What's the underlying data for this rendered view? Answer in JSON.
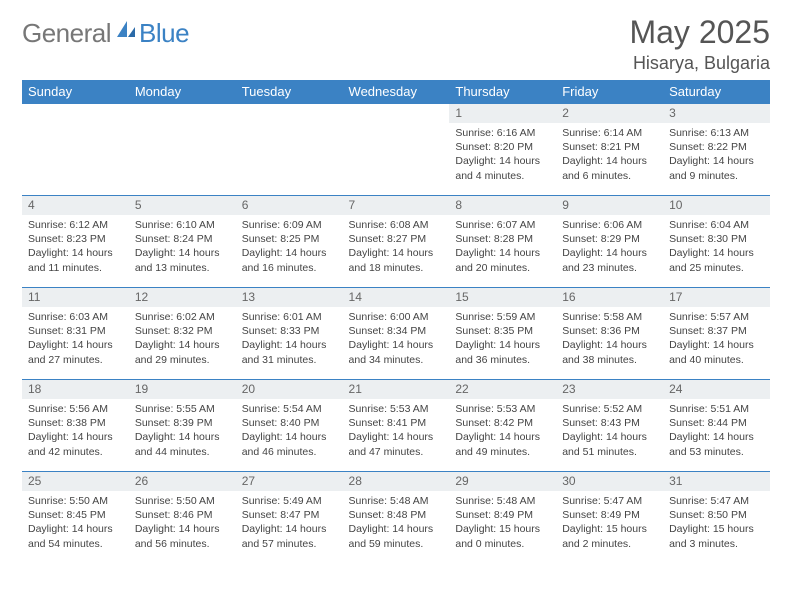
{
  "logo": {
    "general": "General",
    "blue": "Blue"
  },
  "title": "May 2025",
  "location": "Hisarya, Bulgaria",
  "colors": {
    "header_bg": "#3b82c4",
    "daynum_bg": "#eceff1",
    "border": "#3b82c4"
  },
  "weekdays": [
    "Sunday",
    "Monday",
    "Tuesday",
    "Wednesday",
    "Thursday",
    "Friday",
    "Saturday"
  ],
  "rows": [
    [
      {
        "n": "",
        "sr": "",
        "ss": "",
        "dl": ""
      },
      {
        "n": "",
        "sr": "",
        "ss": "",
        "dl": ""
      },
      {
        "n": "",
        "sr": "",
        "ss": "",
        "dl": ""
      },
      {
        "n": "",
        "sr": "",
        "ss": "",
        "dl": ""
      },
      {
        "n": "1",
        "sr": "Sunrise: 6:16 AM",
        "ss": "Sunset: 8:20 PM",
        "dl": "Daylight: 14 hours and 4 minutes."
      },
      {
        "n": "2",
        "sr": "Sunrise: 6:14 AM",
        "ss": "Sunset: 8:21 PM",
        "dl": "Daylight: 14 hours and 6 minutes."
      },
      {
        "n": "3",
        "sr": "Sunrise: 6:13 AM",
        "ss": "Sunset: 8:22 PM",
        "dl": "Daylight: 14 hours and 9 minutes."
      }
    ],
    [
      {
        "n": "4",
        "sr": "Sunrise: 6:12 AM",
        "ss": "Sunset: 8:23 PM",
        "dl": "Daylight: 14 hours and 11 minutes."
      },
      {
        "n": "5",
        "sr": "Sunrise: 6:10 AM",
        "ss": "Sunset: 8:24 PM",
        "dl": "Daylight: 14 hours and 13 minutes."
      },
      {
        "n": "6",
        "sr": "Sunrise: 6:09 AM",
        "ss": "Sunset: 8:25 PM",
        "dl": "Daylight: 14 hours and 16 minutes."
      },
      {
        "n": "7",
        "sr": "Sunrise: 6:08 AM",
        "ss": "Sunset: 8:27 PM",
        "dl": "Daylight: 14 hours and 18 minutes."
      },
      {
        "n": "8",
        "sr": "Sunrise: 6:07 AM",
        "ss": "Sunset: 8:28 PM",
        "dl": "Daylight: 14 hours and 20 minutes."
      },
      {
        "n": "9",
        "sr": "Sunrise: 6:06 AM",
        "ss": "Sunset: 8:29 PM",
        "dl": "Daylight: 14 hours and 23 minutes."
      },
      {
        "n": "10",
        "sr": "Sunrise: 6:04 AM",
        "ss": "Sunset: 8:30 PM",
        "dl": "Daylight: 14 hours and 25 minutes."
      }
    ],
    [
      {
        "n": "11",
        "sr": "Sunrise: 6:03 AM",
        "ss": "Sunset: 8:31 PM",
        "dl": "Daylight: 14 hours and 27 minutes."
      },
      {
        "n": "12",
        "sr": "Sunrise: 6:02 AM",
        "ss": "Sunset: 8:32 PM",
        "dl": "Daylight: 14 hours and 29 minutes."
      },
      {
        "n": "13",
        "sr": "Sunrise: 6:01 AM",
        "ss": "Sunset: 8:33 PM",
        "dl": "Daylight: 14 hours and 31 minutes."
      },
      {
        "n": "14",
        "sr": "Sunrise: 6:00 AM",
        "ss": "Sunset: 8:34 PM",
        "dl": "Daylight: 14 hours and 34 minutes."
      },
      {
        "n": "15",
        "sr": "Sunrise: 5:59 AM",
        "ss": "Sunset: 8:35 PM",
        "dl": "Daylight: 14 hours and 36 minutes."
      },
      {
        "n": "16",
        "sr": "Sunrise: 5:58 AM",
        "ss": "Sunset: 8:36 PM",
        "dl": "Daylight: 14 hours and 38 minutes."
      },
      {
        "n": "17",
        "sr": "Sunrise: 5:57 AM",
        "ss": "Sunset: 8:37 PM",
        "dl": "Daylight: 14 hours and 40 minutes."
      }
    ],
    [
      {
        "n": "18",
        "sr": "Sunrise: 5:56 AM",
        "ss": "Sunset: 8:38 PM",
        "dl": "Daylight: 14 hours and 42 minutes."
      },
      {
        "n": "19",
        "sr": "Sunrise: 5:55 AM",
        "ss": "Sunset: 8:39 PM",
        "dl": "Daylight: 14 hours and 44 minutes."
      },
      {
        "n": "20",
        "sr": "Sunrise: 5:54 AM",
        "ss": "Sunset: 8:40 PM",
        "dl": "Daylight: 14 hours and 46 minutes."
      },
      {
        "n": "21",
        "sr": "Sunrise: 5:53 AM",
        "ss": "Sunset: 8:41 PM",
        "dl": "Daylight: 14 hours and 47 minutes."
      },
      {
        "n": "22",
        "sr": "Sunrise: 5:53 AM",
        "ss": "Sunset: 8:42 PM",
        "dl": "Daylight: 14 hours and 49 minutes."
      },
      {
        "n": "23",
        "sr": "Sunrise: 5:52 AM",
        "ss": "Sunset: 8:43 PM",
        "dl": "Daylight: 14 hours and 51 minutes."
      },
      {
        "n": "24",
        "sr": "Sunrise: 5:51 AM",
        "ss": "Sunset: 8:44 PM",
        "dl": "Daylight: 14 hours and 53 minutes."
      }
    ],
    [
      {
        "n": "25",
        "sr": "Sunrise: 5:50 AM",
        "ss": "Sunset: 8:45 PM",
        "dl": "Daylight: 14 hours and 54 minutes."
      },
      {
        "n": "26",
        "sr": "Sunrise: 5:50 AM",
        "ss": "Sunset: 8:46 PM",
        "dl": "Daylight: 14 hours and 56 minutes."
      },
      {
        "n": "27",
        "sr": "Sunrise: 5:49 AM",
        "ss": "Sunset: 8:47 PM",
        "dl": "Daylight: 14 hours and 57 minutes."
      },
      {
        "n": "28",
        "sr": "Sunrise: 5:48 AM",
        "ss": "Sunset: 8:48 PM",
        "dl": "Daylight: 14 hours and 59 minutes."
      },
      {
        "n": "29",
        "sr": "Sunrise: 5:48 AM",
        "ss": "Sunset: 8:49 PM",
        "dl": "Daylight: 15 hours and 0 minutes."
      },
      {
        "n": "30",
        "sr": "Sunrise: 5:47 AM",
        "ss": "Sunset: 8:49 PM",
        "dl": "Daylight: 15 hours and 2 minutes."
      },
      {
        "n": "31",
        "sr": "Sunrise: 5:47 AM",
        "ss": "Sunset: 8:50 PM",
        "dl": "Daylight: 15 hours and 3 minutes."
      }
    ]
  ]
}
